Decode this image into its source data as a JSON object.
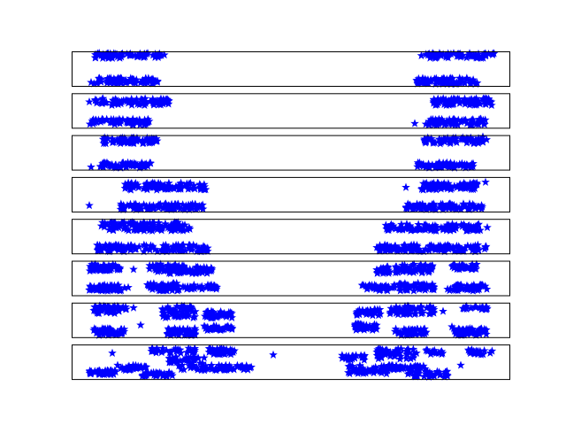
{
  "chart_data": {
    "type": "scatter",
    "marker": "star",
    "marker_color": "#0000ff",
    "frame_color": "#000000",
    "background": "#ffffff",
    "ticks_visible": false,
    "grid": false,
    "legend": "none",
    "xlim": [
      0,
      495
    ],
    "ylim": [
      0,
      40
    ],
    "n_panels": 8,
    "panels": [
      {
        "clusters": [
          {
            "x0": 25,
            "x1": 98,
            "y0": 2,
            "y1": 9,
            "n": 70
          },
          {
            "x0": 25,
            "x1": 105,
            "y0": 32,
            "y1": 38,
            "n": 70
          },
          {
            "x0": 390,
            "x1": 460,
            "y0": 2,
            "y1": 9,
            "n": 70
          },
          {
            "x0": 395,
            "x1": 478,
            "y0": 32,
            "y1": 38,
            "n": 70
          }
        ],
        "outliers": [
          [
            22,
            4
          ],
          [
            98,
            36
          ],
          [
            460,
            37
          ],
          [
            476,
            36
          ],
          [
            392,
            5
          ]
        ]
      },
      {
        "clusters": [
          {
            "x0": 20,
            "x1": 88,
            "y0": 3,
            "y1": 10,
            "n": 70
          },
          {
            "x0": 25,
            "x1": 110,
            "y0": 26,
            "y1": 34,
            "n": 80
          },
          {
            "x0": 400,
            "x1": 468,
            "y0": 3,
            "y1": 10,
            "n": 75
          },
          {
            "x0": 408,
            "x1": 475,
            "y0": 26,
            "y1": 34,
            "n": 80
          }
        ],
        "outliers": [
          [
            20,
            30
          ],
          [
            388,
            5
          ],
          [
            410,
            32
          ]
        ]
      },
      {
        "clusters": [
          {
            "x0": 32,
            "x1": 90,
            "y0": 2,
            "y1": 8,
            "n": 60
          },
          {
            "x0": 35,
            "x1": 98,
            "y0": 30,
            "y1": 37,
            "n": 60
          },
          {
            "x0": 390,
            "x1": 455,
            "y0": 2,
            "y1": 8,
            "n": 60
          },
          {
            "x0": 398,
            "x1": 470,
            "y0": 30,
            "y1": 37,
            "n": 60
          }
        ],
        "outliers": [
          [
            22,
            3
          ],
          [
            465,
            38
          ],
          [
            454,
            7
          ]
        ]
      },
      {
        "clusters": [
          {
            "x0": 55,
            "x1": 150,
            "y0": 2,
            "y1": 9,
            "n": 90
          },
          {
            "x0": 60,
            "x1": 152,
            "y0": 25,
            "y1": 33,
            "n": 90
          },
          {
            "x0": 378,
            "x1": 465,
            "y0": 2,
            "y1": 9,
            "n": 90
          },
          {
            "x0": 390,
            "x1": 460,
            "y0": 25,
            "y1": 33,
            "n": 90
          }
        ],
        "outliers": [
          [
            20,
            7
          ],
          [
            378,
            28
          ],
          [
            468,
            34
          ]
        ]
      },
      {
        "clusters": [
          {
            "x0": 28,
            "x1": 155,
            "y0": 2,
            "y1": 10,
            "n": 120
          },
          {
            "x0": 32,
            "x1": 135,
            "y0": 26,
            "y1": 36,
            "n": 110
          },
          {
            "x0": 345,
            "x1": 470,
            "y0": 2,
            "y1": 10,
            "n": 120
          },
          {
            "x0": 355,
            "x1": 465,
            "y0": 26,
            "y1": 34,
            "n": 110
          }
        ],
        "outliers": [
          [
            348,
            4
          ],
          [
            470,
            30
          ]
        ]
      },
      {
        "clusters": [
          {
            "x0": 20,
            "x1": 60,
            "y0": 5,
            "y1": 12,
            "n": 55
          },
          {
            "x0": 85,
            "x1": 122,
            "y0": 5,
            "y1": 14,
            "n": 55
          },
          {
            "x0": 125,
            "x1": 165,
            "y0": 7,
            "y1": 12,
            "n": 35
          },
          {
            "x0": 20,
            "x1": 55,
            "y0": 28,
            "y1": 36,
            "n": 55
          },
          {
            "x0": 88,
            "x1": 130,
            "y0": 25,
            "y1": 36,
            "n": 55
          },
          {
            "x0": 130,
            "x1": 160,
            "y0": 25,
            "y1": 33,
            "n": 35
          },
          {
            "x0": 328,
            "x1": 365,
            "y0": 5,
            "y1": 12,
            "n": 45
          },
          {
            "x0": 370,
            "x1": 410,
            "y0": 5,
            "y1": 14,
            "n": 55
          },
          {
            "x0": 425,
            "x1": 470,
            "y0": 5,
            "y1": 12,
            "n": 50
          },
          {
            "x0": 340,
            "x1": 360,
            "y0": 25,
            "y1": 33,
            "n": 20
          },
          {
            "x0": 365,
            "x1": 408,
            "y0": 26,
            "y1": 36,
            "n": 55
          },
          {
            "x0": 430,
            "x1": 460,
            "y0": 30,
            "y1": 36,
            "n": 30
          }
        ],
        "outliers": [
          [
            70,
            30
          ],
          [
            64,
            9
          ],
          [
            20,
            6
          ]
        ]
      },
      {
        "clusters": [
          {
            "x0": 25,
            "x1": 62,
            "y0": 27,
            "y1": 36,
            "n": 55
          },
          {
            "x0": 25,
            "x1": 60,
            "y0": 2,
            "y1": 10,
            "n": 50
          },
          {
            "x0": 102,
            "x1": 140,
            "y0": 22,
            "y1": 36,
            "n": 60
          },
          {
            "x0": 108,
            "x1": 140,
            "y0": 2,
            "y1": 10,
            "n": 45
          },
          {
            "x0": 150,
            "x1": 182,
            "y0": 22,
            "y1": 30,
            "n": 40
          },
          {
            "x0": 150,
            "x1": 182,
            "y0": 8,
            "y1": 13,
            "n": 30
          },
          {
            "x0": 320,
            "x1": 345,
            "y0": 8,
            "y1": 16,
            "n": 35
          },
          {
            "x0": 360,
            "x1": 410,
            "y0": 26,
            "y1": 36,
            "n": 60
          },
          {
            "x0": 365,
            "x1": 402,
            "y0": 2,
            "y1": 10,
            "n": 45
          },
          {
            "x0": 322,
            "x1": 350,
            "y0": 25,
            "y1": 32,
            "n": 25
          },
          {
            "x0": 432,
            "x1": 470,
            "y0": 2,
            "y1": 10,
            "n": 45
          },
          {
            "x0": 438,
            "x1": 470,
            "y0": 32,
            "y1": 36,
            "n": 20
          }
        ],
        "outliers": [
          [
            70,
            34
          ],
          [
            78,
            14
          ],
          [
            345,
            30
          ],
          [
            420,
            30
          ],
          [
            430,
            12
          ]
        ]
      },
      {
        "clusters": [
          {
            "x0": 20,
            "x1": 50,
            "y0": 5,
            "y1": 10,
            "n": 40
          },
          {
            "x0": 55,
            "x1": 85,
            "y0": 10,
            "y1": 16,
            "n": 30
          },
          {
            "x0": 80,
            "x1": 115,
            "y0": 3,
            "y1": 8,
            "n": 35
          },
          {
            "x0": 110,
            "x1": 150,
            "y0": 18,
            "y1": 26,
            "n": 40
          },
          {
            "x0": 120,
            "x1": 205,
            "y0": 10,
            "y1": 16,
            "n": 60
          },
          {
            "x0": 155,
            "x1": 185,
            "y0": 28,
            "y1": 36,
            "n": 35
          },
          {
            "x0": 90,
            "x1": 140,
            "y0": 30,
            "y1": 36,
            "n": 30
          },
          {
            "x0": 305,
            "x1": 332,
            "y0": 22,
            "y1": 28,
            "n": 25
          },
          {
            "x0": 310,
            "x1": 360,
            "y0": 6,
            "y1": 16,
            "n": 50
          },
          {
            "x0": 345,
            "x1": 390,
            "y0": 22,
            "y1": 36,
            "n": 55
          },
          {
            "x0": 380,
            "x1": 425,
            "y0": 2,
            "y1": 10,
            "n": 40
          },
          {
            "x0": 350,
            "x1": 400,
            "y0": 10,
            "y1": 16,
            "n": 40
          },
          {
            "x0": 448,
            "x1": 478,
            "y0": 28,
            "y1": 34,
            "n": 25
          },
          {
            "x0": 400,
            "x1": 420,
            "y0": 28,
            "y1": 34,
            "n": 15
          }
        ],
        "outliers": [
          [
            46,
            30
          ],
          [
            52,
            16
          ],
          [
            228,
            28
          ],
          [
            390,
            30
          ],
          [
            440,
            16
          ]
        ]
      }
    ]
  }
}
